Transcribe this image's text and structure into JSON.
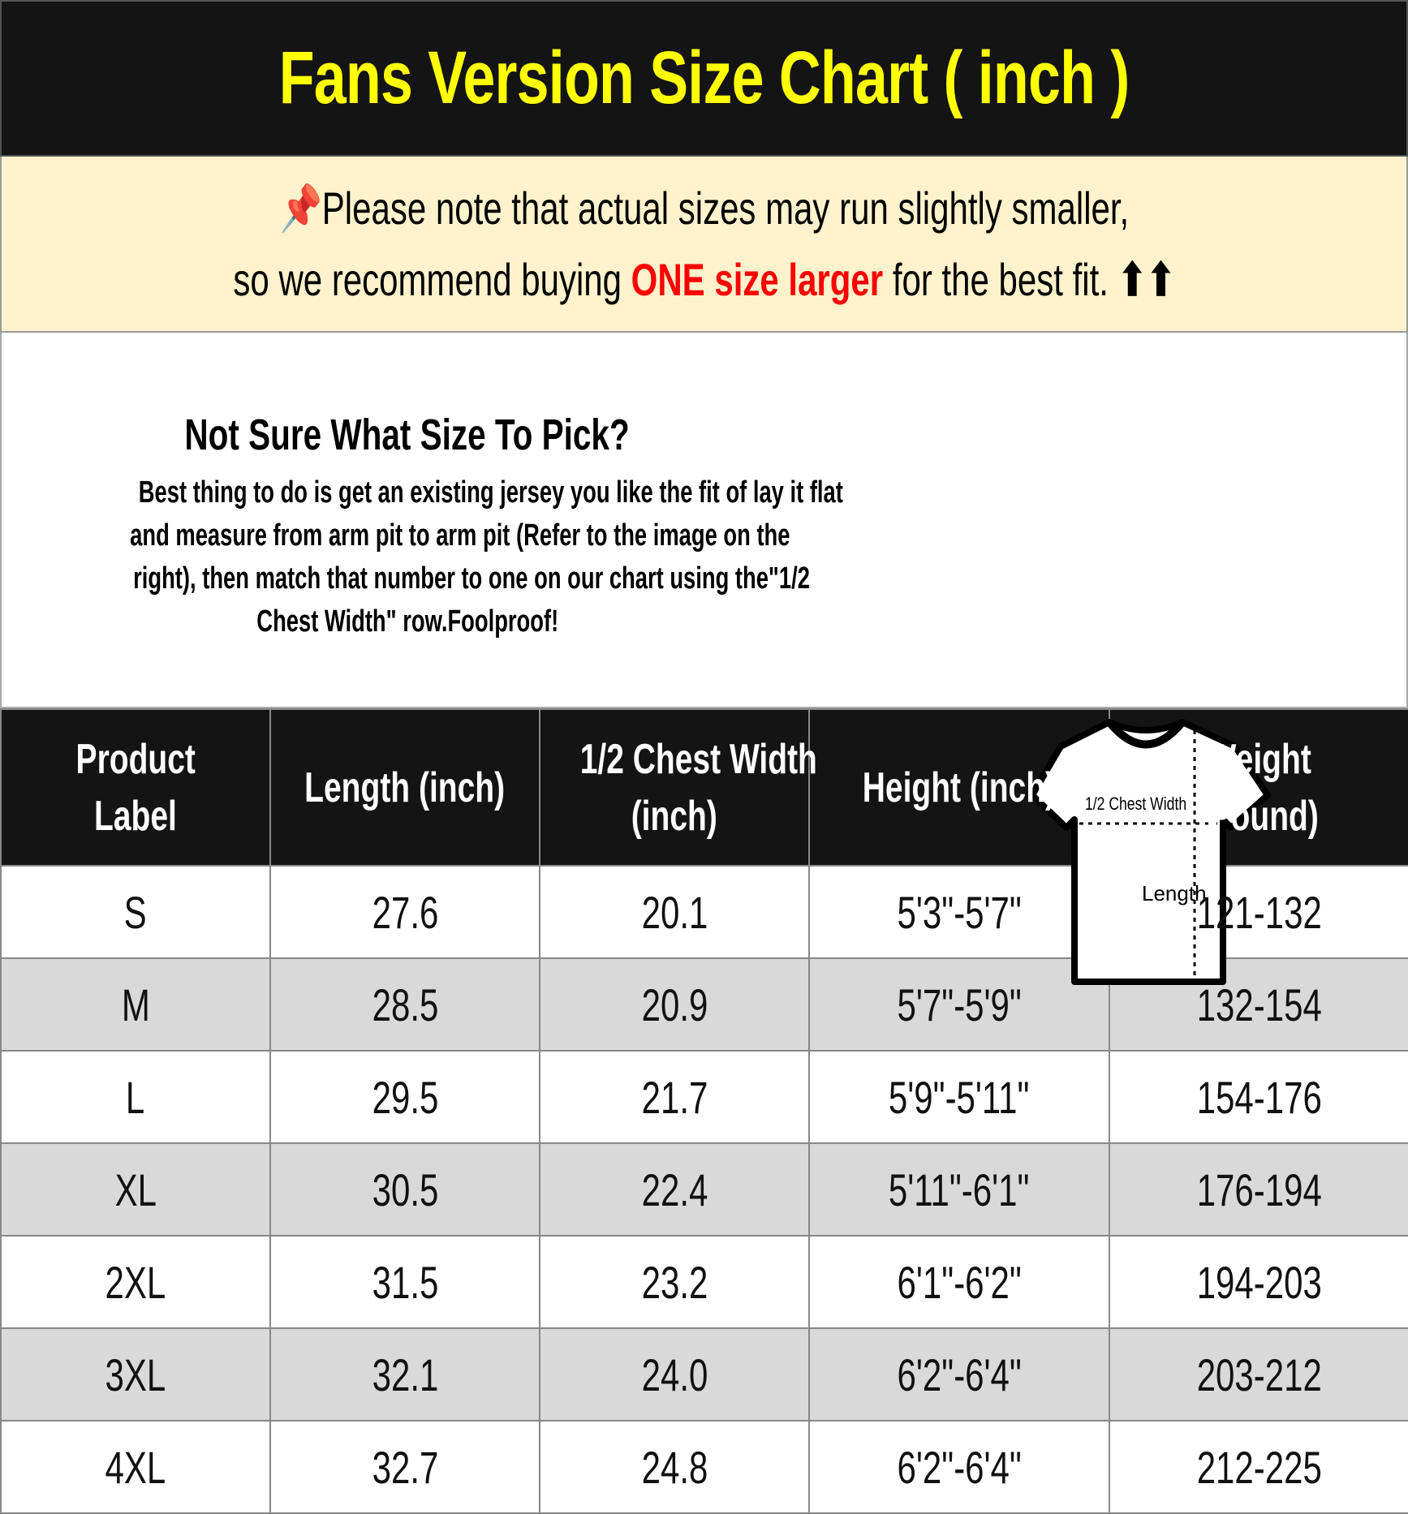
{
  "title": "Fans Version Size Chart ( inch )",
  "note": {
    "icon": "pushpin-icon",
    "line1": "Please note that actual sizes may run slightly smaller,",
    "line2_prefix": "so we recommend buying ",
    "line2_highlight": "ONE size larger",
    "line2_suffix": " for the best fit.",
    "arrows": "⬆⬆",
    "highlight_color": "#ff0000"
  },
  "guide": {
    "heading": "Not Sure What Size To Pick?",
    "lines": [
      "Best thing to do is get an existing jersey you like the fit of lay it flat",
      "and measure from arm pit to arm pit (Refer to the image on the",
      "right), then match that number to one on our chart using the\"1/2",
      "Chest Width\" row.Foolproof!"
    ],
    "diagram": {
      "chest_label": "1/2 Chest Width",
      "length_label": "Length"
    }
  },
  "table": {
    "headers": [
      [
        "Product",
        "Label"
      ],
      [
        "Length (inch)"
      ],
      [
        "1/2 Chest Width",
        "(inch)"
      ],
      [
        "Height (inch)"
      ],
      [
        "Weight",
        "(Pound)"
      ]
    ],
    "rows": [
      [
        "S",
        "27.6",
        "20.1",
        "5'3\"-5'7\"",
        "121-132"
      ],
      [
        "M",
        "28.5",
        "20.9",
        "5'7\"-5'9\"",
        "132-154"
      ],
      [
        "L",
        "29.5",
        "21.7",
        "5'9\"-5'11\"",
        "154-176"
      ],
      [
        "XL",
        "30.5",
        "22.4",
        "5'11\"-6'1\"",
        "176-194"
      ],
      [
        "2XL",
        "31.5",
        "23.2",
        "6'1\"-6'2\"",
        "194-203"
      ],
      [
        "3XL",
        "32.1",
        "24.0",
        "6'2\"-6'4\"",
        "203-212"
      ],
      [
        "4XL",
        "32.7",
        "24.8",
        "6'2\"-6'4\"",
        "212-225"
      ]
    ]
  }
}
